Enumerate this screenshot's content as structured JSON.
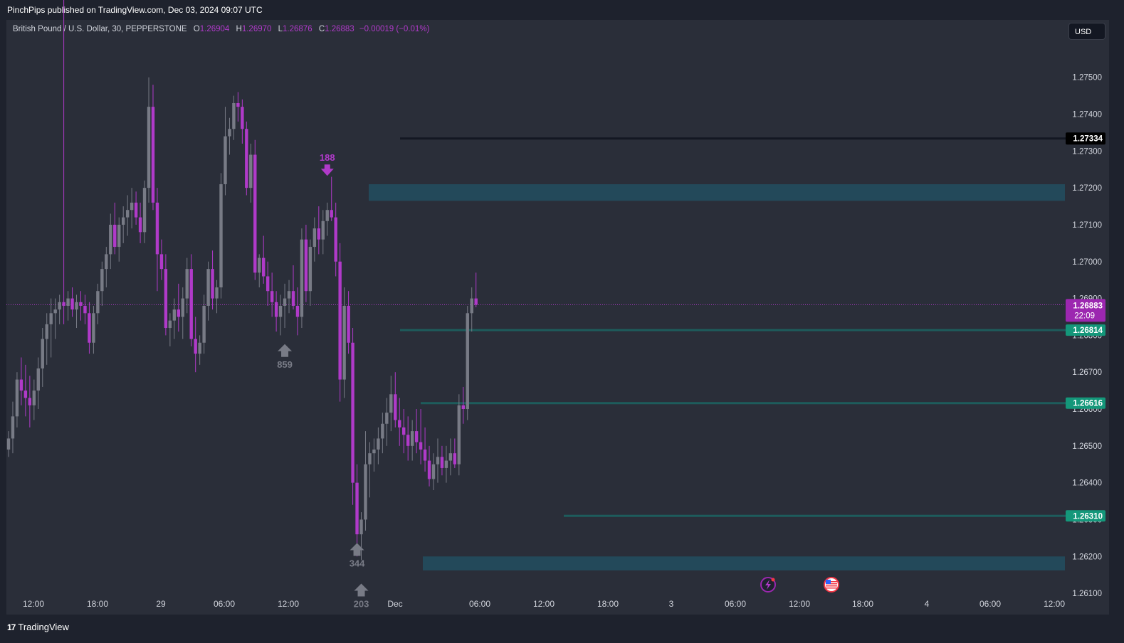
{
  "header": {
    "published": "PinchPips published on TradingView.com, Dec 03, 2024 09:07 UTC"
  },
  "symbol": {
    "name": "British Pound / U.S. Dollar, 30, PEPPERSTONE",
    "o_label": "O",
    "o": "1.26904",
    "h_label": "H",
    "h": "1.26970",
    "l_label": "L",
    "l": "1.26876",
    "c_label": "C",
    "c": "1.26883",
    "change": "−0.00019 (−0.01%)"
  },
  "currency_button": "USD",
  "footer": {
    "brand": "TradingView",
    "brand_icon": "tradingview-logo-icon"
  },
  "colors": {
    "bull": "#787b86",
    "bear": "#b03ac9",
    "zone": "#23495a",
    "level": "#1d5c5c",
    "level_label": "#14977a",
    "resistance_line": "#131722",
    "price_label": "#9c27b0"
  },
  "chart_data": {
    "type": "candlestick",
    "title": "",
    "xlabel": "",
    "ylabel": "",
    "ylim": [
      1.2605,
      1.27594
    ],
    "x_ticks": [
      "12:00",
      "18:00",
      "29",
      "06:00",
      "12:00",
      "Dec",
      "06:00",
      "12:00",
      "18:00",
      "3",
      "06:00",
      "12:00",
      "18:00",
      "4",
      "06:00",
      "12:00"
    ],
    "y_ticks": [
      "1.27500",
      "1.27400",
      "1.27300",
      "1.27200",
      "1.27100",
      "1.27000",
      "1.26900",
      "1.26800",
      "1.26700",
      "1.26600",
      "1.26500",
      "1.26400",
      "1.26300",
      "1.26200",
      "1.26100"
    ],
    "y_tick_values": [
      1.275,
      1.274,
      1.273,
      1.272,
      1.271,
      1.27,
      1.269,
      1.268,
      1.267,
      1.266,
      1.265,
      1.264,
      1.263,
      1.262,
      1.261
    ],
    "candles": [
      [
        1.2649,
        1.2654,
        1.2647,
        1.2652
      ],
      [
        1.2652,
        1.2662,
        1.2648,
        1.2658
      ],
      [
        1.2658,
        1.267,
        1.2655,
        1.2668
      ],
      [
        1.2668,
        1.2674,
        1.2661,
        1.2665
      ],
      [
        1.2665,
        1.2672,
        1.2658,
        1.2663
      ],
      [
        1.2663,
        1.2669,
        1.2655,
        1.2661
      ],
      [
        1.2661,
        1.2668,
        1.2657,
        1.2665
      ],
      [
        1.2665,
        1.2674,
        1.266,
        1.2671
      ],
      [
        1.2671,
        1.2682,
        1.2666,
        1.2679
      ],
      [
        1.2679,
        1.2686,
        1.2672,
        1.2683
      ],
      [
        1.2683,
        1.269,
        1.2674,
        1.2686
      ],
      [
        1.2686,
        1.269,
        1.2679,
        1.2687
      ],
      [
        1.2687,
        1.2691,
        1.2683,
        1.2689
      ],
      [
        1.2689,
        1.2892,
        1.2683,
        1.2688
      ],
      [
        1.2688,
        1.2692,
        1.2684,
        1.269
      ],
      [
        1.269,
        1.2693,
        1.2685,
        1.2687
      ],
      [
        1.2687,
        1.2691,
        1.2682,
        1.2689
      ],
      [
        1.2689,
        1.2692,
        1.2684,
        1.2688
      ],
      [
        1.2688,
        1.2691,
        1.2683,
        1.2686
      ],
      [
        1.2686,
        1.2689,
        1.2675,
        1.2678
      ],
      [
        1.2678,
        1.2688,
        1.2675,
        1.2686
      ],
      [
        1.2686,
        1.2694,
        1.2683,
        1.2692
      ],
      [
        1.2692,
        1.27,
        1.2688,
        1.2698
      ],
      [
        1.2698,
        1.2704,
        1.2693,
        1.2702
      ],
      [
        1.2702,
        1.2713,
        1.2698,
        1.271
      ],
      [
        1.271,
        1.2716,
        1.2702,
        1.2704
      ],
      [
        1.2704,
        1.2712,
        1.27,
        1.271
      ],
      [
        1.271,
        1.2715,
        1.2705,
        1.2712
      ],
      [
        1.2712,
        1.2718,
        1.2707,
        1.2714
      ],
      [
        1.2714,
        1.272,
        1.2709,
        1.2716
      ],
      [
        1.2716,
        1.2719,
        1.271,
        1.2712
      ],
      [
        1.2712,
        1.2716,
        1.2705,
        1.2708
      ],
      [
        1.2708,
        1.2722,
        1.2705,
        1.272
      ],
      [
        1.272,
        1.275,
        1.2716,
        1.2742
      ],
      [
        1.2742,
        1.2748,
        1.2714,
        1.2716
      ],
      [
        1.2716,
        1.272,
        1.2692,
        1.2702
      ],
      [
        1.2702,
        1.2706,
        1.2695,
        1.2698
      ],
      [
        1.2698,
        1.2702,
        1.268,
        1.2682
      ],
      [
        1.2682,
        1.2686,
        1.2677,
        1.2684
      ],
      [
        1.2684,
        1.269,
        1.2679,
        1.2687
      ],
      [
        1.2687,
        1.2694,
        1.2681,
        1.2685
      ],
      [
        1.2685,
        1.2693,
        1.2679,
        1.269
      ],
      [
        1.269,
        1.2701,
        1.2686,
        1.2698
      ],
      [
        1.2698,
        1.2702,
        1.2677,
        1.2679
      ],
      [
        1.2679,
        1.2685,
        1.267,
        1.2675
      ],
      [
        1.2675,
        1.268,
        1.2672,
        1.2678
      ],
      [
        1.2678,
        1.2691,
        1.2675,
        1.2688
      ],
      [
        1.2688,
        1.27,
        1.2684,
        1.2698
      ],
      [
        1.2698,
        1.2703,
        1.2687,
        1.269
      ],
      [
        1.269,
        1.2695,
        1.2686,
        1.2693
      ],
      [
        1.2693,
        1.2724,
        1.269,
        1.2721
      ],
      [
        1.2721,
        1.2742,
        1.2718,
        1.2734
      ],
      [
        1.2734,
        1.2739,
        1.2729,
        1.2736
      ],
      [
        1.2736,
        1.2745,
        1.2733,
        1.2743
      ],
      [
        1.2743,
        1.2746,
        1.2738,
        1.2742
      ],
      [
        1.2742,
        1.2744,
        1.2732,
        1.2736
      ],
      [
        1.2736,
        1.2738,
        1.2718,
        1.272
      ],
      [
        1.272,
        1.2732,
        1.2716,
        1.2729
      ],
      [
        1.2729,
        1.2733,
        1.2695,
        1.2697
      ],
      [
        1.2697,
        1.2702,
        1.2693,
        1.2701
      ],
      [
        1.2701,
        1.2707,
        1.2694,
        1.2696
      ],
      [
        1.2696,
        1.27,
        1.2688,
        1.2692
      ],
      [
        1.2692,
        1.2697,
        1.2685,
        1.2689
      ],
      [
        1.2689,
        1.2692,
        1.2681,
        1.2685
      ],
      [
        1.2685,
        1.2691,
        1.268,
        1.2688
      ],
      [
        1.2688,
        1.2694,
        1.2682,
        1.269
      ],
      [
        1.269,
        1.2695,
        1.2686,
        1.2692
      ],
      [
        1.2692,
        1.2699,
        1.2687,
        1.2688
      ],
      [
        1.2688,
        1.2693,
        1.268,
        1.2685
      ],
      [
        1.2685,
        1.2709,
        1.2682,
        1.2706
      ],
      [
        1.2706,
        1.271,
        1.2689,
        1.2692
      ],
      [
        1.2692,
        1.2706,
        1.2688,
        1.2704
      ],
      [
        1.2704,
        1.2712,
        1.27,
        1.2709
      ],
      [
        1.2709,
        1.2715,
        1.2702,
        1.2706
      ],
      [
        1.2706,
        1.2714,
        1.2702,
        1.2711
      ],
      [
        1.2711,
        1.2716,
        1.2707,
        1.2714
      ],
      [
        1.2714,
        1.2723,
        1.2711,
        1.2712
      ],
      [
        1.2712,
        1.2716,
        1.2696,
        1.27
      ],
      [
        1.27,
        1.2705,
        1.2662,
        1.2668
      ],
      [
        1.2668,
        1.2693,
        1.2663,
        1.2688
      ],
      [
        1.2688,
        1.2692,
        1.2675,
        1.2678
      ],
      [
        1.2678,
        1.2682,
        1.2634,
        1.264
      ],
      [
        1.264,
        1.2645,
        1.262,
        1.2626
      ],
      [
        1.2626,
        1.2632,
        1.2619,
        1.263
      ],
      [
        1.263,
        1.2654,
        1.2627,
        1.2645
      ],
      [
        1.2645,
        1.2651,
        1.2636,
        1.2648
      ],
      [
        1.2648,
        1.2652,
        1.2643,
        1.2649
      ],
      [
        1.2649,
        1.2655,
        1.2645,
        1.2652
      ],
      [
        1.2652,
        1.2659,
        1.2648,
        1.2656
      ],
      [
        1.2656,
        1.2663,
        1.265,
        1.2659
      ],
      [
        1.2659,
        1.2669,
        1.2654,
        1.2664
      ],
      [
        1.2664,
        1.267,
        1.2655,
        1.2657
      ],
      [
        1.2657,
        1.2663,
        1.265,
        1.2655
      ],
      [
        1.2655,
        1.266,
        1.2648,
        1.2653
      ],
      [
        1.2653,
        1.2658,
        1.2646,
        1.265
      ],
      [
        1.265,
        1.2657,
        1.2646,
        1.2654
      ],
      [
        1.2654,
        1.266,
        1.2648,
        1.2651
      ],
      [
        1.2651,
        1.266,
        1.2645,
        1.2649
      ],
      [
        1.2649,
        1.2655,
        1.2643,
        1.2646
      ],
      [
        1.2646,
        1.265,
        1.2639,
        1.2641
      ],
      [
        1.2641,
        1.2648,
        1.2638,
        1.2645
      ],
      [
        1.2645,
        1.2652,
        1.264,
        1.2647
      ],
      [
        1.2647,
        1.265,
        1.2642,
        1.2644
      ],
      [
        1.2644,
        1.265,
        1.264,
        1.2646
      ],
      [
        1.2646,
        1.2652,
        1.2642,
        1.2648
      ],
      [
        1.2648,
        1.2652,
        1.2644,
        1.2645
      ],
      [
        1.2645,
        1.2664,
        1.2642,
        1.2661
      ],
      [
        1.2661,
        1.2666,
        1.2656,
        1.266
      ],
      [
        1.266,
        1.2688,
        1.2657,
        1.2686
      ],
      [
        1.2686,
        1.2693,
        1.2681,
        1.269
      ],
      [
        1.269,
        1.2697,
        1.26876,
        1.26883
      ]
    ]
  },
  "levels": {
    "resistance": {
      "price": 1.27334,
      "label": "1.27334"
    },
    "lines": [
      {
        "price": 1.26814,
        "label": "1.26814"
      },
      {
        "price": 1.26616,
        "label": "1.26616"
      },
      {
        "price": 1.2631,
        "label": "1.26310"
      }
    ],
    "current": {
      "price": 1.26883,
      "label": "1.26883",
      "countdown": "22:09"
    }
  },
  "zones": [
    {
      "from": 1.27165,
      "to": 1.2721
    },
    {
      "from": 1.26162,
      "to": 1.262
    }
  ],
  "markers": [
    {
      "label": "188",
      "dir": "down",
      "color": "#b03ac9",
      "candle": 75,
      "price": 1.27225
    },
    {
      "label": "859",
      "dir": "up",
      "color": "#787b86",
      "candle": 65,
      "price": 1.2678
    },
    {
      "label": "344",
      "dir": "up",
      "color": "#787b86",
      "candle": 82,
      "price": 1.2624
    },
    {
      "label": "203",
      "dir": "up",
      "color": "#787b86",
      "candle": 83,
      "price": 1.2613
    }
  ],
  "events": [
    {
      "icon": "lightning-event-icon"
    },
    {
      "icon": "us-flag-event-icon"
    }
  ]
}
